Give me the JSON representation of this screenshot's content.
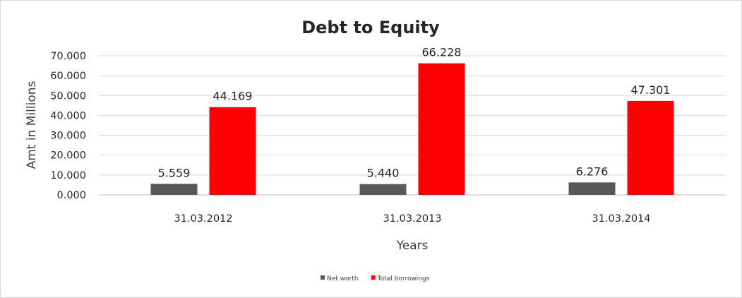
{
  "chart_data": {
    "type": "bar",
    "title": "Debt to Equity",
    "xlabel": "Years",
    "ylabel": "Amt in Millions",
    "categories": [
      "31.03.2012",
      "31.03.2013",
      "31.03.2014"
    ],
    "series": [
      {
        "name": "Net worth",
        "values": [
          5.559,
          5.44,
          6.276
        ],
        "labels": [
          "5.559",
          "5.440",
          "6.276"
        ],
        "color": "#595959"
      },
      {
        "name": "Total borrowings",
        "values": [
          44.169,
          66.228,
          47.301
        ],
        "labels": [
          "44.169",
          "66.228",
          "47.301"
        ],
        "color": "#ff0000"
      }
    ],
    "ylim": [
      0,
      70
    ],
    "yticks": [
      "0.000",
      "10.000",
      "20.000",
      "30.000",
      "40.000",
      "50.000",
      "60.000",
      "70.000"
    ],
    "grid": true,
    "legend": "bottom"
  }
}
